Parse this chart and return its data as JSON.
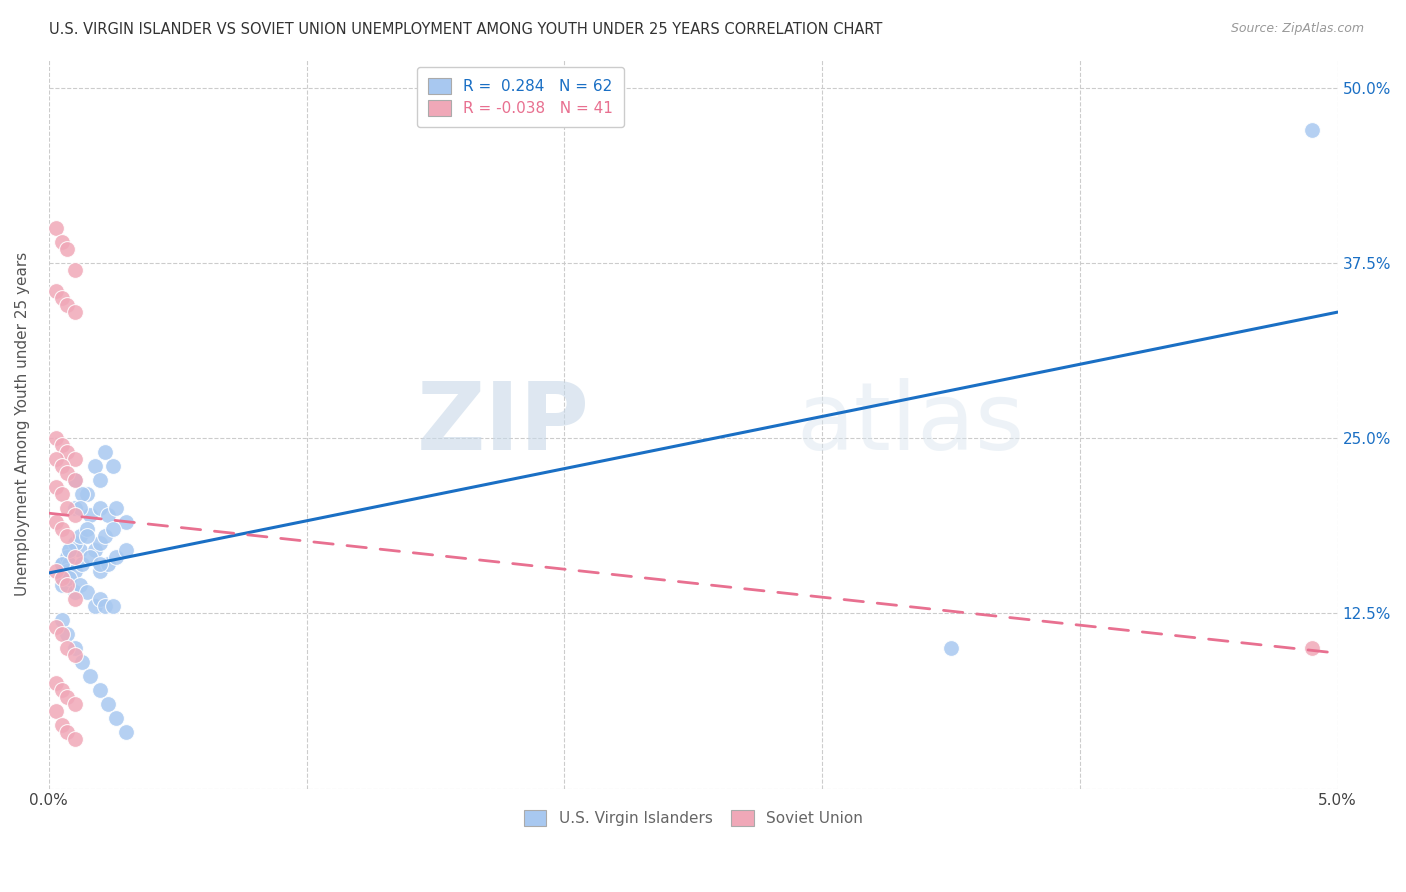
{
  "title": "U.S. VIRGIN ISLANDER VS SOVIET UNION UNEMPLOYMENT AMONG YOUTH UNDER 25 YEARS CORRELATION CHART",
  "source": "Source: ZipAtlas.com",
  "ylabel": "Unemployment Among Youth under 25 years",
  "xlabel_vi": "U.S. Virgin Islanders",
  "xlabel_su": "Soviet Union",
  "xlim": [
    0.0,
    0.05
  ],
  "ylim": [
    0.0,
    0.52
  ],
  "xticks": [
    0.0,
    0.01,
    0.02,
    0.03,
    0.04,
    0.05
  ],
  "xticklabels": [
    "0.0%",
    "",
    "",
    "",
    "",
    "5.0%"
  ],
  "yticks": [
    0.0,
    0.125,
    0.25,
    0.375,
    0.5
  ],
  "yticklabels": [
    "",
    "12.5%",
    "25.0%",
    "37.5%",
    "50.0%"
  ],
  "vi_color": "#a8c8f0",
  "su_color": "#f0a8b8",
  "vi_line_color": "#1a6fc4",
  "su_line_color": "#e87090",
  "R_vi": 0.284,
  "N_vi": 62,
  "R_su": -0.038,
  "N_su": 41,
  "watermark_zip": "ZIP",
  "watermark_atlas": "atlas",
  "vi_scatter_x": [
    0.0005,
    0.0008,
    0.001,
    0.0012,
    0.0015,
    0.0018,
    0.002,
    0.0022,
    0.0025,
    0.0005,
    0.0007,
    0.001,
    0.0013,
    0.0016,
    0.002,
    0.0023,
    0.0026,
    0.003,
    0.0005,
    0.0008,
    0.001,
    0.0012,
    0.0015,
    0.0018,
    0.002,
    0.0022,
    0.0025,
    0.0005,
    0.0007,
    0.001,
    0.0013,
    0.0016,
    0.002,
    0.0023,
    0.0026,
    0.003,
    0.0005,
    0.0008,
    0.001,
    0.0012,
    0.0015,
    0.0018,
    0.002,
    0.0022,
    0.0025,
    0.0005,
    0.0007,
    0.001,
    0.0013,
    0.0016,
    0.002,
    0.0023,
    0.0026,
    0.003,
    0.0005,
    0.0008,
    0.001,
    0.0012,
    0.0015,
    0.002,
    0.035,
    0.049
  ],
  "vi_scatter_y": [
    0.16,
    0.17,
    0.22,
    0.17,
    0.21,
    0.23,
    0.22,
    0.24,
    0.23,
    0.16,
    0.165,
    0.2,
    0.21,
    0.195,
    0.2,
    0.195,
    0.2,
    0.19,
    0.155,
    0.16,
    0.175,
    0.18,
    0.185,
    0.17,
    0.175,
    0.18,
    0.185,
    0.15,
    0.155,
    0.155,
    0.16,
    0.165,
    0.155,
    0.16,
    0.165,
    0.17,
    0.145,
    0.15,
    0.14,
    0.145,
    0.14,
    0.13,
    0.135,
    0.13,
    0.13,
    0.12,
    0.11,
    0.1,
    0.09,
    0.08,
    0.07,
    0.06,
    0.05,
    0.04,
    0.16,
    0.17,
    0.22,
    0.2,
    0.18,
    0.16,
    0.1,
    0.47
  ],
  "su_scatter_x": [
    0.0003,
    0.0005,
    0.0007,
    0.001,
    0.0003,
    0.0005,
    0.0007,
    0.001,
    0.0003,
    0.0005,
    0.0007,
    0.001,
    0.0003,
    0.0005,
    0.0007,
    0.001,
    0.0003,
    0.0005,
    0.0007,
    0.001,
    0.0003,
    0.0005,
    0.0007,
    0.001,
    0.0003,
    0.0005,
    0.0007,
    0.001,
    0.0003,
    0.0005,
    0.0007,
    0.001,
    0.0003,
    0.0005,
    0.0007,
    0.001,
    0.0003,
    0.0005,
    0.0007,
    0.001,
    0.049
  ],
  "su_scatter_y": [
    0.4,
    0.39,
    0.385,
    0.37,
    0.355,
    0.35,
    0.345,
    0.34,
    0.25,
    0.245,
    0.24,
    0.235,
    0.235,
    0.23,
    0.225,
    0.22,
    0.215,
    0.21,
    0.2,
    0.195,
    0.19,
    0.185,
    0.18,
    0.165,
    0.155,
    0.15,
    0.145,
    0.135,
    0.115,
    0.11,
    0.1,
    0.095,
    0.075,
    0.07,
    0.065,
    0.06,
    0.055,
    0.045,
    0.04,
    0.035,
    0.1
  ]
}
